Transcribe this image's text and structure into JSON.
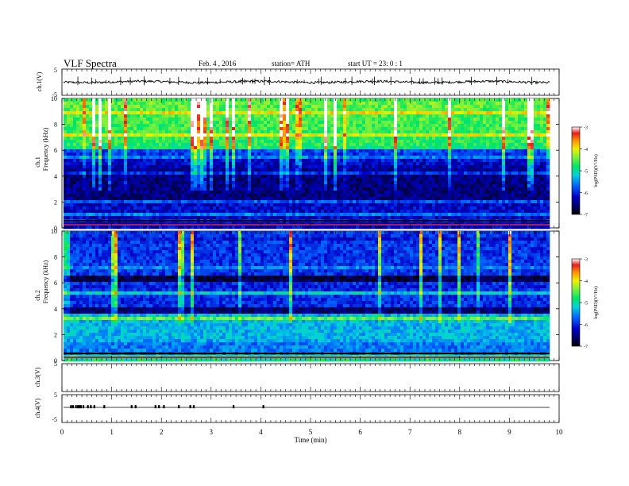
{
  "header": {
    "title": "VLF  Spectra",
    "date": "Feb. 4  , 2016",
    "station": "station= ATH",
    "start": "start  UT  =    23: 0  : 1"
  },
  "chart_data": [
    {
      "type": "line",
      "panel": "ch1-waveform",
      "ylabel": "ch.1(V)",
      "ylim": [
        -5,
        5
      ],
      "yticks": [
        "5",
        "-5"
      ],
      "x_range_min": [
        0,
        9.8
      ],
      "baseline_value": 0.1
    },
    {
      "type": "heatmap",
      "panel": "ch1-spectrogram",
      "ylabel_top": "ch.1",
      "ylabel": "Frequency  (kHz)",
      "ylim": [
        0,
        10
      ],
      "yticks": [
        "0",
        "2",
        "4",
        "6",
        "8",
        "10"
      ],
      "colorbar": {
        "label": "log(PSD)(V²/Hz)",
        "range": [
          -7,
          -3
        ],
        "ticks": [
          "-3",
          "-4",
          "-5",
          "-6",
          "-7"
        ]
      }
    },
    {
      "type": "heatmap",
      "panel": "ch2-spectrogram",
      "ylabel_top": "ch.2",
      "ylabel": "Frequency  (kHz)",
      "ylim": [
        0,
        10
      ],
      "yticks": [
        "0",
        "2",
        "4",
        "6",
        "8",
        "10"
      ],
      "colorbar": {
        "label": "log(PSD)(V²/Hz)",
        "range": [
          -7,
          -3
        ],
        "ticks": [
          "-3",
          "-4",
          "-5",
          "-6",
          "-7"
        ]
      }
    },
    {
      "type": "line",
      "panel": "ch3-waveform",
      "ylabel": "ch.3(V)",
      "ylim": [
        -5,
        5
      ],
      "yticks": [
        "5"
      ]
    },
    {
      "type": "line",
      "panel": "ch4-waveform",
      "ylabel": "ch.4(V)",
      "ylim": [
        -5,
        5
      ],
      "yticks": [
        "5",
        "-5"
      ],
      "baseline_value": 0.1,
      "pulse_times_min": [
        0.18,
        0.22,
        0.28,
        0.32,
        0.35,
        0.38,
        0.43,
        0.52,
        0.58,
        0.65,
        0.85,
        1.4,
        1.48,
        1.88,
        1.95,
        2.05,
        2.35,
        2.58,
        2.65,
        3.45,
        4.05
      ]
    }
  ],
  "xaxis": {
    "label": "Time  (min)",
    "ticks": [
      "0",
      "1",
      "2",
      "3",
      "4",
      "5",
      "6",
      "7",
      "8",
      "9",
      "10"
    ],
    "range": [
      0,
      10
    ]
  }
}
